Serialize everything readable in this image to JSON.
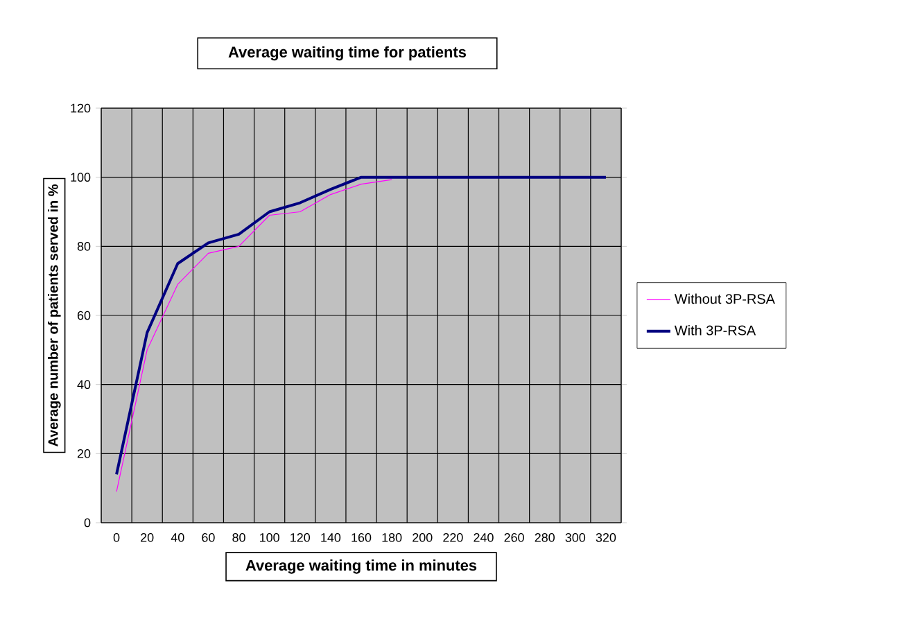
{
  "chart_data": {
    "type": "line",
    "title": "Average waiting time for patients",
    "xlabel": "Average waiting time in minutes",
    "ylabel": "Average number of patients served in %",
    "categories": [
      "0",
      "20",
      "40",
      "60",
      "80",
      "100",
      "120",
      "140",
      "160",
      "180",
      "200",
      "220",
      "240",
      "260",
      "280",
      "300",
      "320"
    ],
    "series": [
      {
        "name": "Without  3P-RSA",
        "color": "#ff00ff",
        "values": [
          9,
          50,
          69,
          78,
          80,
          89,
          90,
          95,
          98,
          99.3,
          null,
          null,
          null,
          null,
          null,
          null,
          null
        ]
      },
      {
        "name": "With 3P-RSA",
        "color": "#000080",
        "values": [
          14,
          55,
          75,
          81,
          83.5,
          90,
          92.6,
          96.5,
          100,
          100,
          100,
          100,
          100,
          100,
          100,
          100,
          100
        ]
      }
    ],
    "ylim": [
      0,
      120
    ],
    "yticks": [
      0,
      20,
      40,
      60,
      80,
      100,
      120
    ],
    "grid": true,
    "legend": "right"
  }
}
